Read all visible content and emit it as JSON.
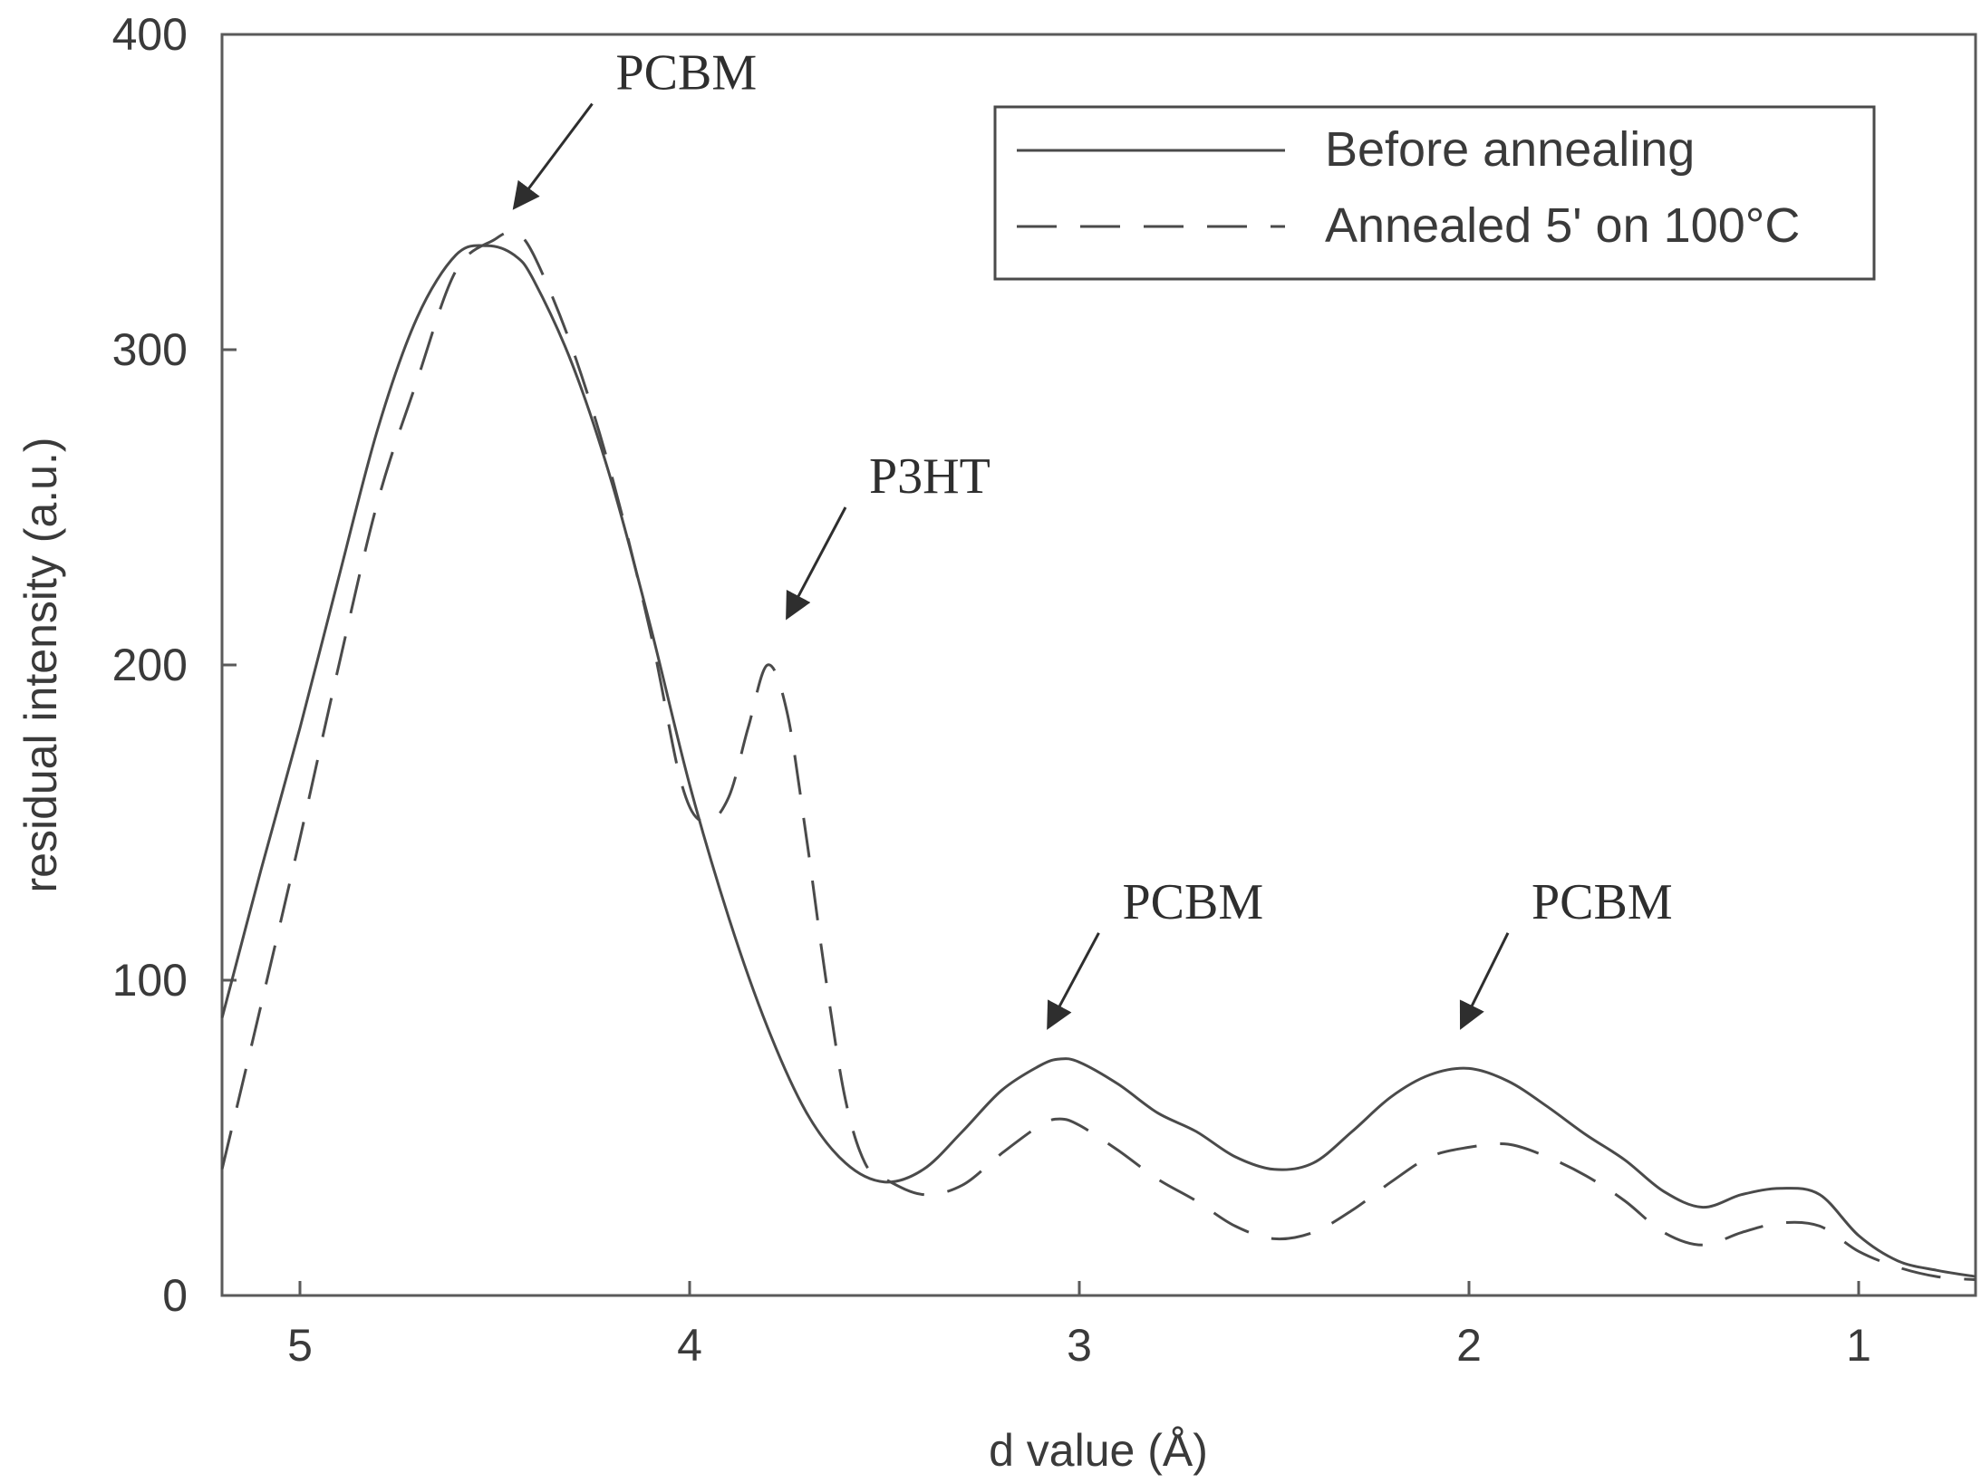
{
  "chart_data": {
    "type": "line",
    "title": "",
    "xlabel": "d value (Å)",
    "ylabel": "residual intensity (a.u.)",
    "xlim": [
      5.2,
      0.7
    ],
    "ylim": [
      0,
      400
    ],
    "x_reversed": true,
    "grid": false,
    "legend_position": "top-right",
    "xticks": [
      5,
      4,
      3,
      2,
      1
    ],
    "yticks": [
      0,
      100,
      200,
      300,
      400
    ],
    "series": [
      {
        "name": "Before annealing",
        "style": "solid",
        "color": "#4a4a4a",
        "points": [
          [
            5.2,
            88
          ],
          [
            5.1,
            135
          ],
          [
            5.0,
            180
          ],
          [
            4.9,
            228
          ],
          [
            4.8,
            275
          ],
          [
            4.7,
            310
          ],
          [
            4.6,
            330
          ],
          [
            4.52,
            333
          ],
          [
            4.45,
            330
          ],
          [
            4.4,
            322
          ],
          [
            4.3,
            295
          ],
          [
            4.2,
            258
          ],
          [
            4.1,
            212
          ],
          [
            4.0,
            162
          ],
          [
            3.9,
            120
          ],
          [
            3.8,
            85
          ],
          [
            3.7,
            58
          ],
          [
            3.6,
            42
          ],
          [
            3.5,
            36
          ],
          [
            3.4,
            40
          ],
          [
            3.3,
            52
          ],
          [
            3.2,
            65
          ],
          [
            3.1,
            73
          ],
          [
            3.05,
            75
          ],
          [
            3.0,
            74
          ],
          [
            2.9,
            67
          ],
          [
            2.8,
            58
          ],
          [
            2.7,
            52
          ],
          [
            2.6,
            44
          ],
          [
            2.5,
            40
          ],
          [
            2.4,
            42
          ],
          [
            2.3,
            52
          ],
          [
            2.2,
            63
          ],
          [
            2.1,
            70
          ],
          [
            2.0,
            72
          ],
          [
            1.9,
            68
          ],
          [
            1.8,
            60
          ],
          [
            1.7,
            51
          ],
          [
            1.6,
            43
          ],
          [
            1.5,
            33
          ],
          [
            1.4,
            28
          ],
          [
            1.3,
            32
          ],
          [
            1.2,
            34
          ],
          [
            1.1,
            32
          ],
          [
            1.0,
            19
          ],
          [
            0.9,
            11
          ],
          [
            0.8,
            8
          ],
          [
            0.7,
            6
          ]
        ]
      },
      {
        "name": "Annealed 5' on 100°C",
        "style": "dashed",
        "color": "#4a4a4a",
        "points": [
          [
            5.2,
            40
          ],
          [
            5.1,
            92
          ],
          [
            5.0,
            145
          ],
          [
            4.9,
            200
          ],
          [
            4.8,
            252
          ],
          [
            4.7,
            290
          ],
          [
            4.6,
            325
          ],
          [
            4.5,
            335
          ],
          [
            4.45,
            337
          ],
          [
            4.4,
            330
          ],
          [
            4.3,
            300
          ],
          [
            4.2,
            260
          ],
          [
            4.1,
            210
          ],
          [
            4.02,
            162
          ],
          [
            3.96,
            150
          ],
          [
            3.9,
            158
          ],
          [
            3.85,
            180
          ],
          [
            3.8,
            200
          ],
          [
            3.75,
            185
          ],
          [
            3.7,
            145
          ],
          [
            3.65,
            100
          ],
          [
            3.6,
            62
          ],
          [
            3.55,
            42
          ],
          [
            3.5,
            37
          ],
          [
            3.4,
            32
          ],
          [
            3.3,
            35
          ],
          [
            3.2,
            45
          ],
          [
            3.1,
            54
          ],
          [
            3.05,
            56
          ],
          [
            3.0,
            54
          ],
          [
            2.9,
            46
          ],
          [
            2.8,
            37
          ],
          [
            2.7,
            30
          ],
          [
            2.6,
            22
          ],
          [
            2.5,
            18
          ],
          [
            2.4,
            20
          ],
          [
            2.3,
            27
          ],
          [
            2.2,
            36
          ],
          [
            2.1,
            44
          ],
          [
            2.0,
            47
          ],
          [
            1.9,
            48
          ],
          [
            1.8,
            44
          ],
          [
            1.7,
            38
          ],
          [
            1.6,
            30
          ],
          [
            1.5,
            20
          ],
          [
            1.4,
            16
          ],
          [
            1.3,
            20
          ],
          [
            1.2,
            23
          ],
          [
            1.1,
            22
          ],
          [
            1.0,
            14
          ],
          [
            0.9,
            9
          ],
          [
            0.8,
            6
          ],
          [
            0.7,
            5
          ]
        ]
      }
    ],
    "annotations": [
      {
        "text": "PCBM",
        "x": 4.45,
        "y": 345,
        "arrow_from": [
          4.25,
          378
        ]
      },
      {
        "text": "P3HT",
        "x": 3.75,
        "y": 215,
        "arrow_from": [
          3.6,
          250
        ]
      },
      {
        "text": "PCBM",
        "x": 3.08,
        "y": 85,
        "arrow_from": [
          2.95,
          115
        ]
      },
      {
        "text": "PCBM",
        "x": 2.02,
        "y": 85,
        "arrow_from": [
          1.9,
          115
        ]
      }
    ]
  }
}
